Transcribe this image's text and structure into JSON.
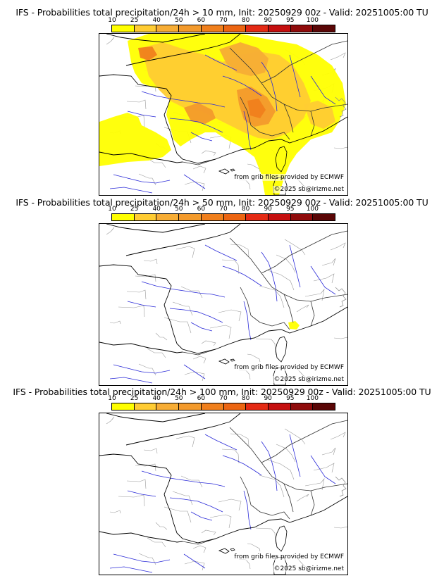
{
  "panels": [
    {
      "title": "IFS - Probabilities total precipitation/24h > 10 mm, Init: 20250929 00z - Valid: 20251005:00 TU",
      "precip_coverage": "extensive",
      "source_credit": "from grib files provided by ECMWF",
      "copyright": "©2025 sb@irizme.net"
    },
    {
      "title": "IFS - Probabilities total precipitation/24h > 50 mm, Init: 20250929 00z - Valid: 20251005:00 TU",
      "precip_coverage": "minimal",
      "source_credit": "from grib files provided by ECMWF",
      "copyright": "©2025 sb@irizme.net"
    },
    {
      "title": "IFS - Probabilities total precipitation/24h > 100 mm, Init: 20250929 00z - Valid: 20251005:00 TU",
      "precip_coverage": "none",
      "source_credit": "from grib files provided by ECMWF",
      "copyright": "©2025 sb@irizme.net"
    }
  ],
  "legend": {
    "ticks": [
      "10",
      "25",
      "40",
      "50",
      "60",
      "70",
      "80",
      "90",
      "95",
      "100"
    ],
    "colors": [
      "#ffff00",
      "#ffcc33",
      "#f7ad35",
      "#f39a2c",
      "#f07f1c",
      "#ec6512",
      "#e42a14",
      "#c50f0f",
      "#8f0b0b",
      "#5a0606"
    ]
  }
}
